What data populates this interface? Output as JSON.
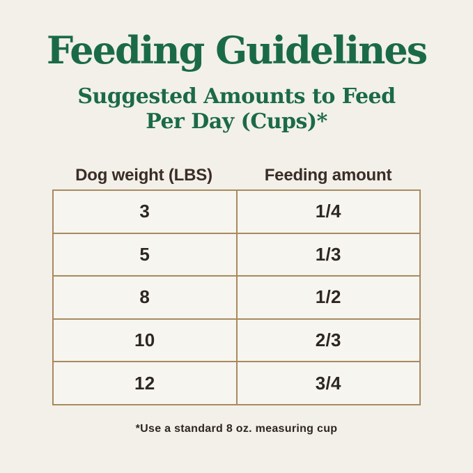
{
  "page": {
    "title": "Feeding Guidelines",
    "subtitle_line1": "Suggested Amounts to Feed",
    "subtitle_line2": "Per Day (Cups)*",
    "footnote": "*Use a standard 8 oz. measuring cup"
  },
  "colors": {
    "background": "#f2f0e9",
    "cell_background": "#f6f5ef",
    "title_green": "#1b6a47",
    "table_border": "#a88a5e",
    "table_text": "#2e2621",
    "header_text": "#3a2d26"
  },
  "table": {
    "columns": [
      "Dog weight (LBS)",
      "Feeding amount"
    ],
    "rows": [
      {
        "weight": "3",
        "amount": "1/4"
      },
      {
        "weight": "5",
        "amount": "1/3"
      },
      {
        "weight": "8",
        "amount": "1/2"
      },
      {
        "weight": "10",
        "amount": "2/3"
      },
      {
        "weight": "12",
        "amount": "3/4"
      }
    ]
  },
  "chart_data": {
    "type": "table",
    "title": "Feeding Guidelines",
    "subtitle": "Suggested Amounts to Feed Per Day (Cups)*",
    "columns": [
      "Dog weight (LBS)",
      "Feeding amount"
    ],
    "rows": [
      [
        "3",
        "1/4"
      ],
      [
        "5",
        "1/3"
      ],
      [
        "8",
        "1/2"
      ],
      [
        "10",
        "2/3"
      ],
      [
        "12",
        "3/4"
      ]
    ],
    "footnote": "*Use a standard 8 oz. measuring cup"
  }
}
